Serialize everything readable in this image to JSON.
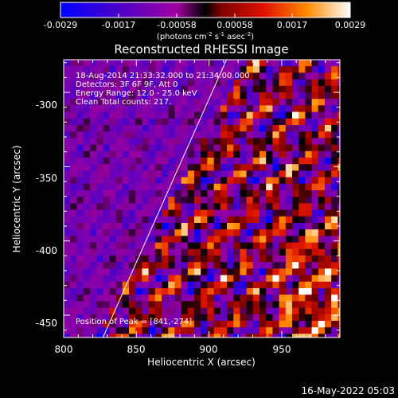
{
  "colorbar": {
    "tick_labels": [
      "-0.0029",
      "-0.0017",
      "-0.00058",
      "0.00058",
      "0.0017",
      "0.0029"
    ],
    "unit_parts": [
      "(photons cm",
      "-2",
      " s",
      "-1",
      " asec",
      "-2",
      ")"
    ]
  },
  "plot": {
    "title": "Reconstructed RHESSI Image",
    "annotations": [
      "18-Aug-2014 21:33:32.000 to 21:34:00.000",
      "Detectors: 3F 6F 9F, Att 0",
      "Energy Range: 12.0 - 25.0 keV",
      "Clean    Total counts: 217."
    ],
    "peak_label": "Position of Peak = [841,-274]",
    "x_axis": {
      "label": "Heliocentric X (arcsec)",
      "ticks": [
        "800",
        "850",
        "900",
        "950"
      ],
      "range": [
        800,
        990
      ]
    },
    "y_axis": {
      "label": "Heliocentric Y (arcsec)",
      "ticks": [
        "-300",
        "-350",
        "-400",
        "-450"
      ],
      "range": [
        -465,
        -278
      ]
    },
    "limb_line_points": [
      [
        827,
        -465
      ],
      [
        912,
        -278
      ]
    ]
  },
  "footer": {
    "date": "16-May-2022 05:03"
  },
  "colors": {
    "background": "#000000",
    "text": "#ffffff"
  }
}
